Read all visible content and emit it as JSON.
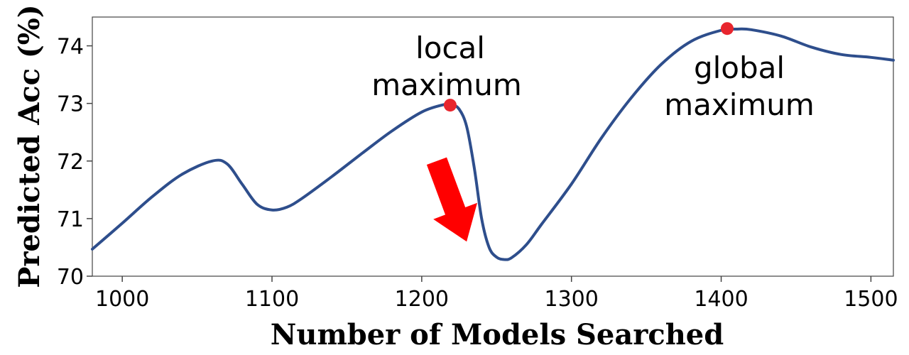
{
  "chart_data": {
    "type": "line",
    "xlabel": "Number of Models Searched",
    "ylabel": "Predicted Acc (%)",
    "xlim": [
      980,
      1515
    ],
    "ylim": [
      70,
      74.5
    ],
    "xticks": [
      1000,
      1100,
      1200,
      1300,
      1400,
      1500
    ],
    "yticks": [
      70,
      71,
      72,
      73,
      74
    ],
    "grid": false,
    "series": [
      {
        "color": "#2e4e8c",
        "x": [
          980,
          1000,
          1020,
          1040,
          1060,
          1070,
          1080,
          1090,
          1100,
          1110,
          1120,
          1140,
          1160,
          1180,
          1200,
          1215,
          1220,
          1225,
          1230,
          1235,
          1240,
          1245,
          1250,
          1255,
          1260,
          1270,
          1280,
          1300,
          1320,
          1340,
          1360,
          1380,
          1400,
          1410,
          1420,
          1440,
          1460,
          1480,
          1500,
          1515
        ],
        "y": [
          70.47,
          70.92,
          71.38,
          71.77,
          72.0,
          71.95,
          71.6,
          71.25,
          71.15,
          71.2,
          71.35,
          71.73,
          72.13,
          72.52,
          72.85,
          72.98,
          72.98,
          72.9,
          72.6,
          71.9,
          71.0,
          70.5,
          70.33,
          70.29,
          70.32,
          70.55,
          70.9,
          71.6,
          72.4,
          73.1,
          73.68,
          74.08,
          74.27,
          74.29,
          74.28,
          74.17,
          73.98,
          73.85,
          73.8,
          73.75
        ]
      }
    ],
    "markers": [
      {
        "x": 1219,
        "y": 72.97,
        "color": "#e8262e"
      },
      {
        "x": 1404,
        "y": 74.3,
        "color": "#e8262e"
      }
    ],
    "annotations": [
      {
        "lines": [
          "local",
          "maximum"
        ]
      },
      {
        "lines": [
          "global",
          "maximum"
        ]
      }
    ],
    "arrow": {
      "from": [
        1210,
        72.0
      ],
      "to": [
        1230,
        70.6
      ],
      "color": "#ff0000"
    }
  }
}
